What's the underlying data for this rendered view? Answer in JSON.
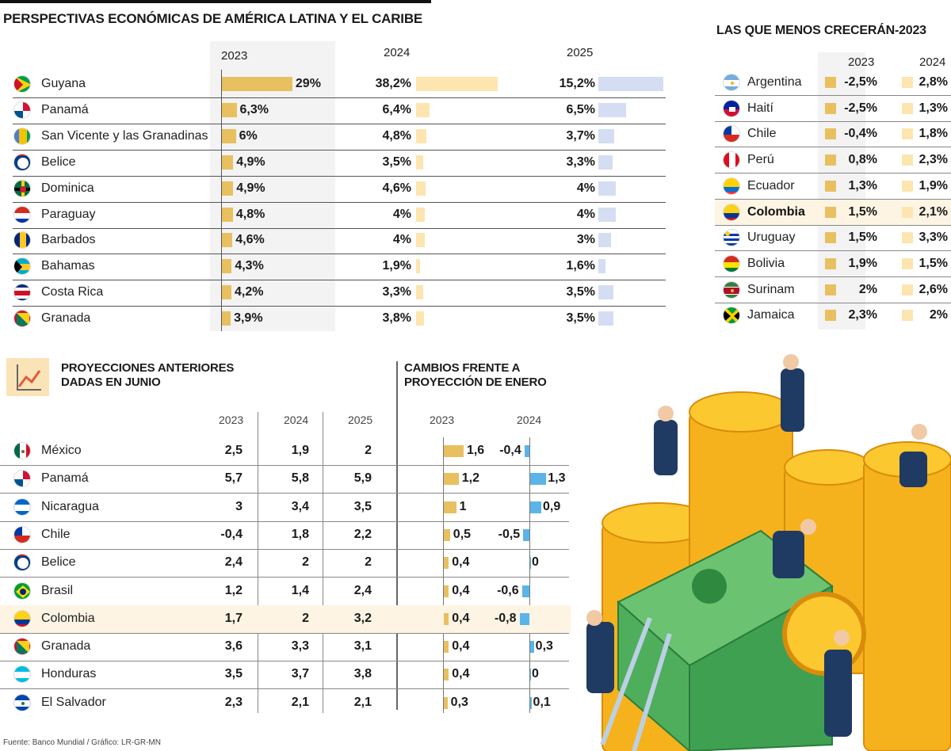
{
  "main_title": "PERSPECTIVAS ECONÓMICAS DE AMÉRICA LATINA Y EL CARIBE",
  "right_title": "LAS QUE MENOS CRECERÁN-2023",
  "bottom_left_title": [
    "PROYECCIONES ANTERIORES",
    "DADAS EN JUNIO"
  ],
  "bottom_right_title": [
    "CAMBIOS FRENTE A",
    "PROYECCIÓN DE ENERO"
  ],
  "source": "Fuente: Banco Mundial / Gráfico: LR-GR-MN",
  "colors": {
    "y2023": "#e8c060",
    "y2024": "#fde5b0",
    "y2025": "#d5ddf2",
    "change2024": "#5ab4e8",
    "highlight": "#fdf4e3",
    "gray_col": "#f3f3f3"
  },
  "chart_data": [
    {
      "type": "table",
      "title": "PERSPECTIVAS ECONÓMICAS DE AMÉRICA LATINA Y EL CARIBE",
      "columns": [
        "2023",
        "2024",
        "2025"
      ],
      "rows": [
        {
          "country": "Guyana",
          "flag": "guyana",
          "values": [
            29,
            38.2,
            15.2
          ],
          "labels": [
            "29%",
            "38,2%",
            "15,2%"
          ]
        },
        {
          "country": "Panamá",
          "flag": "panama",
          "values": [
            6.3,
            6.4,
            6.5
          ],
          "labels": [
            "6,3%",
            "6,4%",
            "6,5%"
          ]
        },
        {
          "country": "San Vicente y las Granadinas",
          "flag": "svg",
          "values": [
            6,
            4.8,
            3.7
          ],
          "labels": [
            "6%",
            "4,8%",
            "3,7%"
          ]
        },
        {
          "country": "Belice",
          "flag": "belize",
          "values": [
            4.9,
            3.5,
            3.3
          ],
          "labels": [
            "4,9%",
            "3,5%",
            "3,3%"
          ]
        },
        {
          "country": "Dominica",
          "flag": "dominica",
          "values": [
            4.9,
            4.6,
            4
          ],
          "labels": [
            "4,9%",
            "4,6%",
            "4%"
          ]
        },
        {
          "country": "Paraguay",
          "flag": "paraguay",
          "values": [
            4.8,
            4,
            4
          ],
          "labels": [
            "4,8%",
            "4%",
            "4%"
          ]
        },
        {
          "country": "Barbados",
          "flag": "barbados",
          "values": [
            4.6,
            4,
            3
          ],
          "labels": [
            "4,6%",
            "4%",
            "3%"
          ]
        },
        {
          "country": "Bahamas",
          "flag": "bahamas",
          "values": [
            4.3,
            1.9,
            1.6
          ],
          "labels": [
            "4,3%",
            "1,9%",
            "1,6%"
          ]
        },
        {
          "country": "Costa Rica",
          "flag": "costarica",
          "values": [
            4.2,
            3.3,
            3.5
          ],
          "labels": [
            "4,2%",
            "3,3%",
            "3,5%"
          ]
        },
        {
          "country": "Granada",
          "flag": "grenada",
          "values": [
            3.9,
            3.8,
            3.5
          ],
          "labels": [
            "3,9%",
            "3,8%",
            "3,5%"
          ]
        }
      ]
    },
    {
      "type": "table",
      "title": "LAS QUE MENOS CRECERÁN-2023",
      "columns": [
        "2023",
        "2024"
      ],
      "rows": [
        {
          "country": "Argentina",
          "flag": "argentina",
          "labels": [
            "-2,5%",
            "2,8%"
          ]
        },
        {
          "country": "Haití",
          "flag": "haiti",
          "labels": [
            "-2,5%",
            "1,3%"
          ]
        },
        {
          "country": "Chile",
          "flag": "chile",
          "labels": [
            "-0,4%",
            "1,8%"
          ]
        },
        {
          "country": "Perú",
          "flag": "peru",
          "labels": [
            "0,8%",
            "2,3%"
          ]
        },
        {
          "country": "Ecuador",
          "flag": "ecuador",
          "labels": [
            "1,3%",
            "1,9%"
          ]
        },
        {
          "country": "Colombia",
          "flag": "colombia",
          "labels": [
            "1,5%",
            "2,1%"
          ],
          "highlight": true
        },
        {
          "country": "Uruguay",
          "flag": "uruguay",
          "labels": [
            "1,5%",
            "3,3%"
          ]
        },
        {
          "country": "Bolivia",
          "flag": "bolivia",
          "labels": [
            "1,9%",
            "1,5%"
          ]
        },
        {
          "country": "Surinam",
          "flag": "suriname",
          "labels": [
            "2%",
            "2,6%"
          ]
        },
        {
          "country": "Jamaica",
          "flag": "jamaica",
          "labels": [
            "2,3%",
            "2%"
          ]
        }
      ]
    },
    {
      "type": "table",
      "title": "PROYECCIONES ANTERIORES DADAS EN JUNIO",
      "columns": [
        "2023",
        "2024",
        "2025"
      ],
      "change_title": "CAMBIOS FRENTE A PROYECCIÓN DE ENERO",
      "change_columns": [
        "2023",
        "2024"
      ],
      "rows": [
        {
          "country": "México",
          "flag": "mexico",
          "labels": [
            "2,5",
            "1,9",
            "2"
          ],
          "change": [
            1.6,
            -0.4
          ],
          "change_labels": [
            "1,6",
            "-0,4"
          ]
        },
        {
          "country": "Panamá",
          "flag": "panama",
          "labels": [
            "5,7",
            "5,8",
            "5,9"
          ],
          "change": [
            1.2,
            1.3
          ],
          "change_labels": [
            "1,2",
            "1,3"
          ]
        },
        {
          "country": "Nicaragua",
          "flag": "nicaragua",
          "labels": [
            "3",
            "3,4",
            "3,5"
          ],
          "change": [
            1,
            0.9
          ],
          "change_labels": [
            "1",
            "0,9"
          ]
        },
        {
          "country": "Chile",
          "flag": "chile",
          "labels": [
            "-0,4",
            "1,8",
            "2,2"
          ],
          "change": [
            0.5,
            -0.5
          ],
          "change_labels": [
            "0,5",
            "-0,5"
          ]
        },
        {
          "country": "Belice",
          "flag": "belize",
          "labels": [
            "2,4",
            "2",
            "2"
          ],
          "change": [
            0.4,
            0
          ],
          "change_labels": [
            "0,4",
            "0"
          ]
        },
        {
          "country": "Brasil",
          "flag": "brazil",
          "labels": [
            "1,2",
            "1,4",
            "2,4"
          ],
          "change": [
            0.4,
            -0.6
          ],
          "change_labels": [
            "0,4",
            "-0,6"
          ]
        },
        {
          "country": "Colombia",
          "flag": "colombia",
          "labels": [
            "1,7",
            "2",
            "3,2"
          ],
          "change": [
            0.4,
            -0.8
          ],
          "change_labels": [
            "0,4",
            "-0,8"
          ],
          "highlight": true
        },
        {
          "country": "Granada",
          "flag": "grenada",
          "labels": [
            "3,6",
            "3,3",
            "3,1"
          ],
          "change": [
            0.4,
            0.3
          ],
          "change_labels": [
            "0,4",
            "0,3"
          ]
        },
        {
          "country": "Honduras",
          "flag": "honduras",
          "labels": [
            "3,5",
            "3,7",
            "3,8"
          ],
          "change": [
            0.4,
            0
          ],
          "change_labels": [
            "0,4",
            "0"
          ]
        },
        {
          "country": "El Salvador",
          "flag": "elsalvador",
          "labels": [
            "2,3",
            "2,1",
            "2,1"
          ],
          "change": [
            0.3,
            0.1
          ],
          "change_labels": [
            "0,3",
            "0,1"
          ]
        }
      ]
    }
  ]
}
